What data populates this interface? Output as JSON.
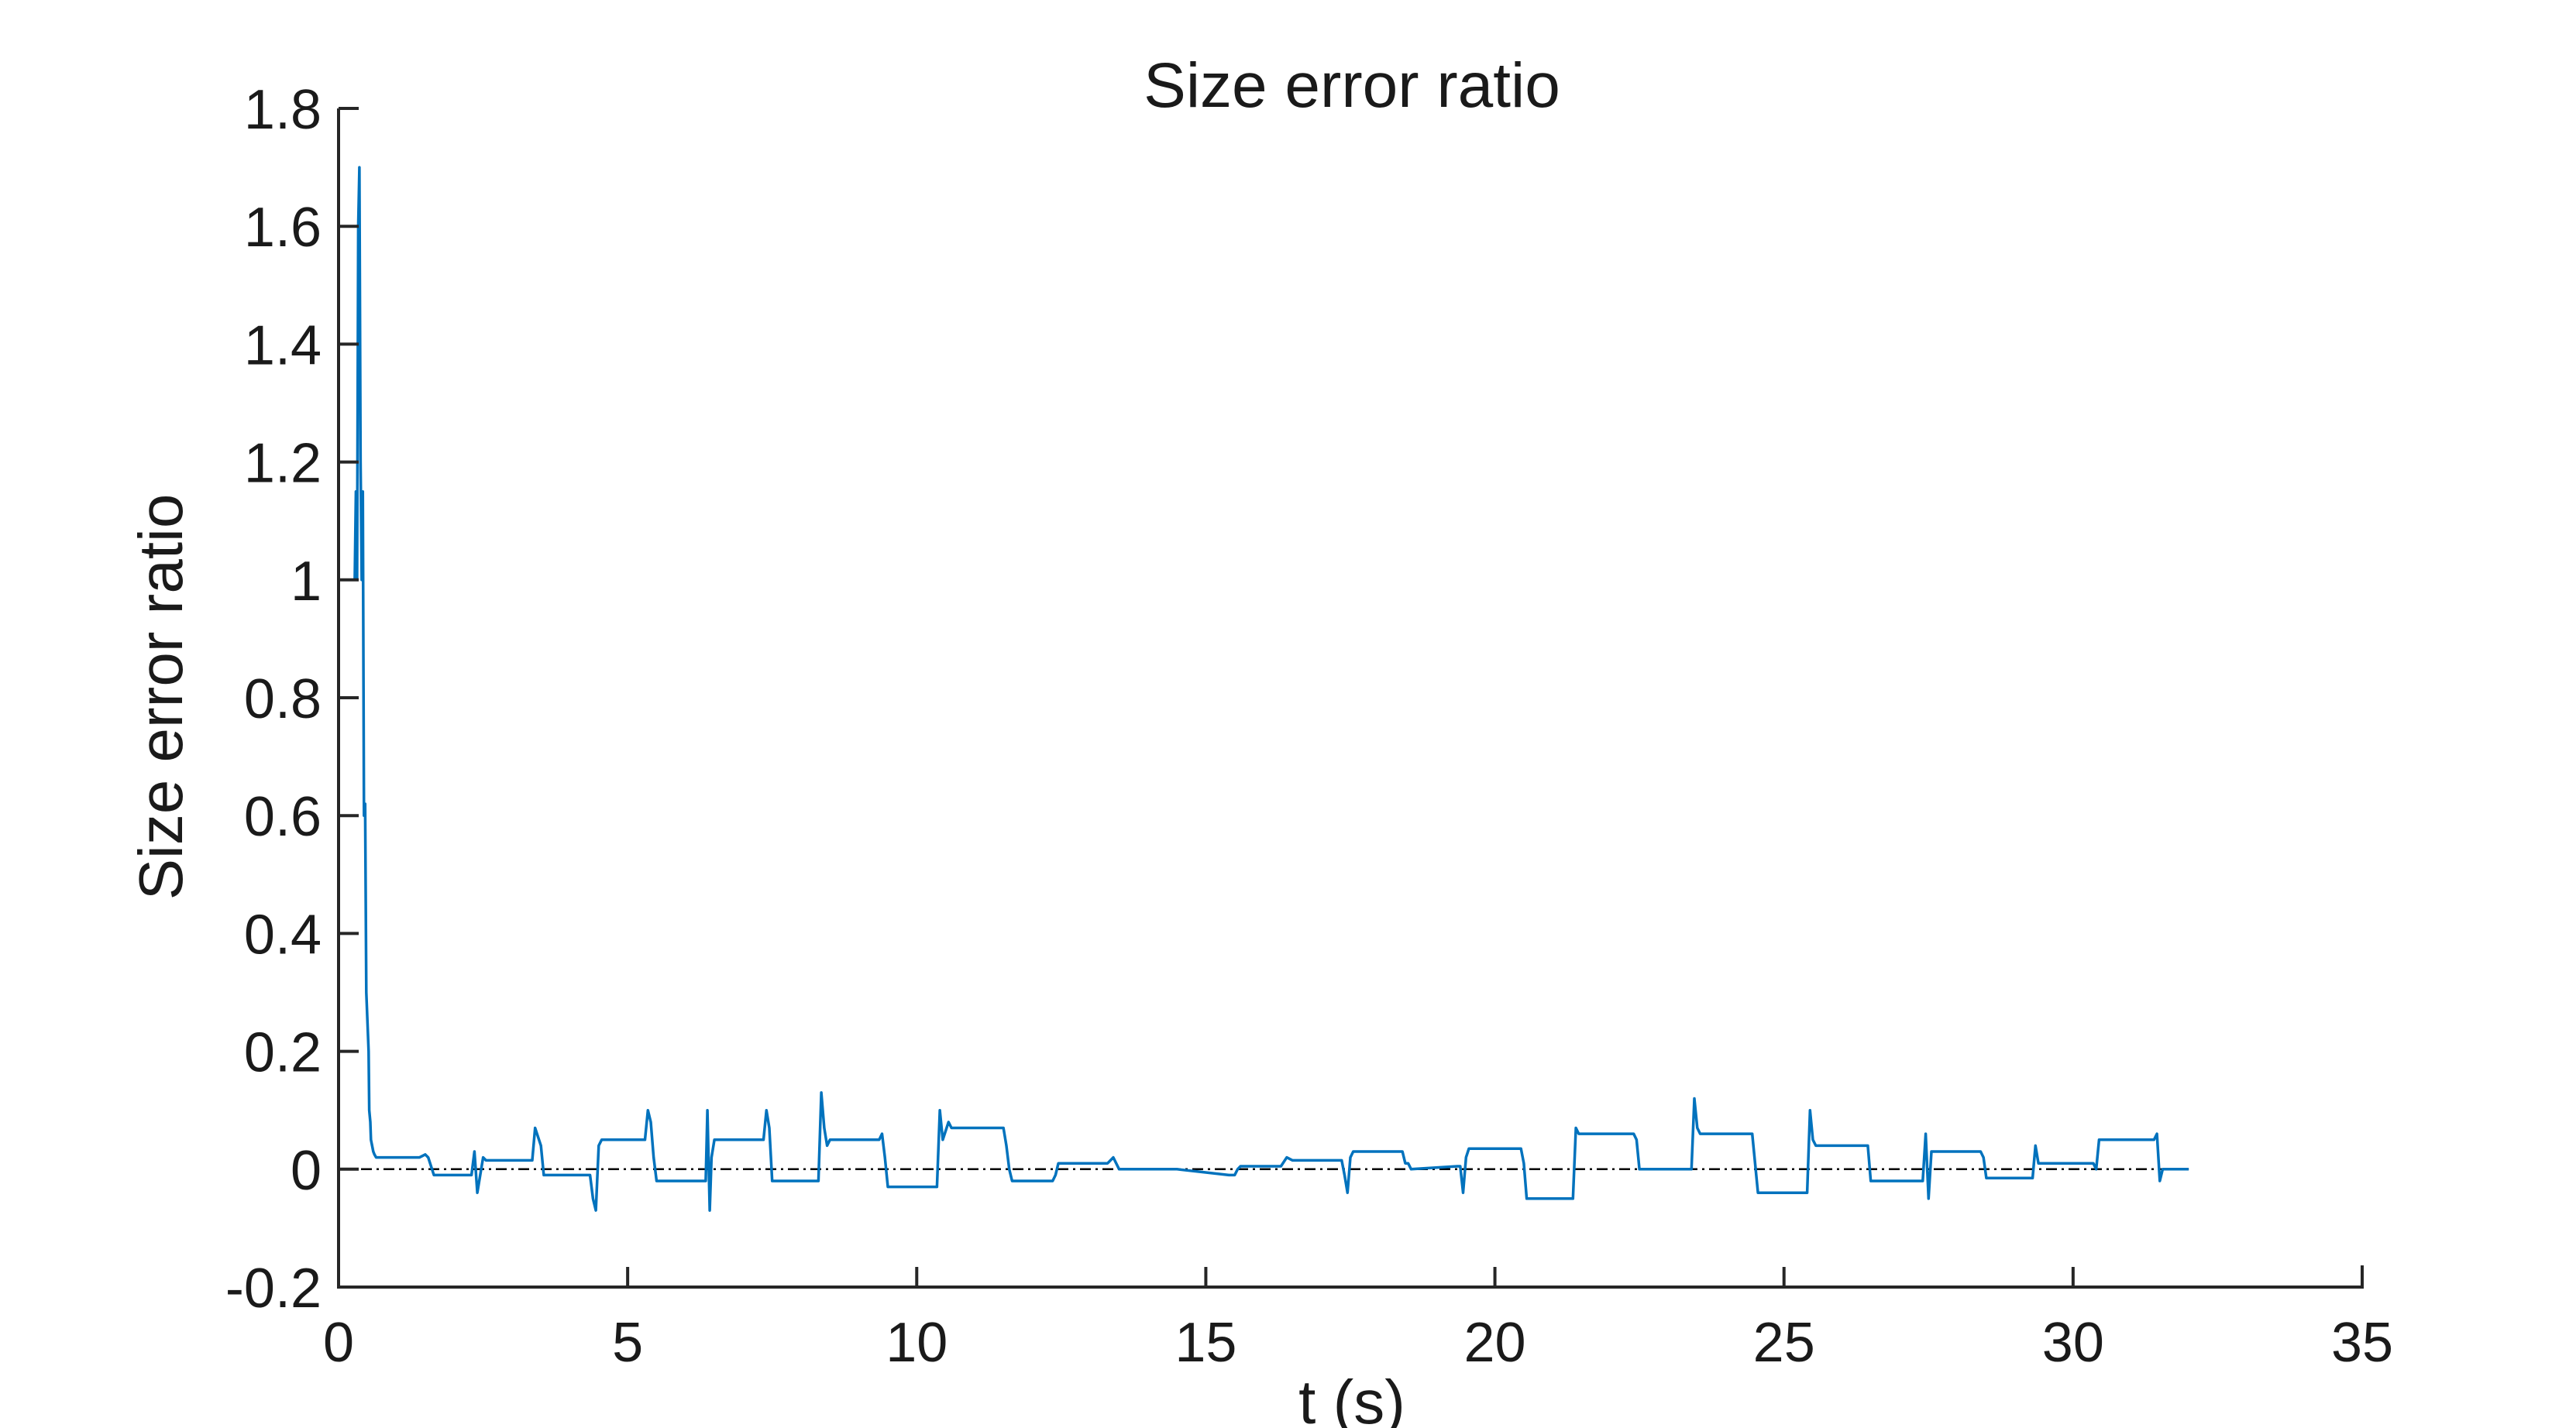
{
  "chart_data": {
    "type": "line",
    "title": "Size error ratio",
    "xlabel": "t (s)",
    "ylabel": "Size error ratio",
    "xlim": [
      0,
      35
    ],
    "ylim": [
      -0.2,
      1.8
    ],
    "xticks": [
      0,
      5,
      10,
      15,
      20,
      25,
      30,
      35
    ],
    "xtick_labels": [
      "0",
      "5",
      "10",
      "15",
      "20",
      "25",
      "30",
      "35"
    ],
    "yticks": [
      -0.2,
      0,
      0.2,
      0.4,
      0.6,
      0.8,
      1,
      1.2,
      1.4,
      1.6,
      1.8
    ],
    "ytick_labels": [
      "-0.2",
      "0",
      "0.2",
      "0.4",
      "0.6",
      "0.8",
      "1",
      "1.2",
      "1.4",
      "1.6",
      "1.8"
    ],
    "grid": false,
    "reference_line": {
      "y": 0,
      "x_range": [
        0,
        32
      ],
      "style": "dash-dot",
      "color": "#000000"
    },
    "series": [
      {
        "color": "#0072BD",
        "x": [
          0.0,
          0.28,
          0.3,
          0.32,
          0.34,
          0.36,
          0.38,
          0.4,
          0.42,
          0.44,
          0.46,
          0.48,
          0.5,
          0.52,
          0.53,
          0.55,
          0.56,
          0.58,
          0.6,
          0.62,
          0.65,
          0.7,
          0.75,
          0.8,
          1.0,
          1.4,
          1.5,
          1.55,
          1.65,
          2.3,
          2.35,
          2.4,
          2.5,
          2.55,
          2.6,
          3.35,
          3.4,
          3.5,
          3.55,
          3.6,
          4.35,
          4.4,
          4.45,
          4.5,
          4.55,
          5.3,
          5.35,
          5.4,
          5.45,
          5.5,
          5.55,
          6.35,
          6.38,
          6.42,
          6.45,
          6.5,
          6.55,
          7.35,
          7.4,
          7.45,
          7.5,
          7.55,
          8.3,
          8.35,
          8.4,
          8.45,
          8.5,
          8.55,
          9.35,
          9.4,
          9.45,
          9.5,
          9.55,
          10.35,
          10.4,
          10.45,
          10.55,
          10.6,
          10.7,
          11.5,
          11.55,
          11.6,
          11.65,
          12.35,
          12.4,
          12.45,
          13.3,
          13.4,
          13.5,
          13.6,
          14.3,
          14.4,
          14.5,
          15.4,
          15.5,
          15.55,
          15.6,
          16.3,
          16.4,
          16.5,
          16.55,
          17.35,
          17.4,
          17.45,
          17.5,
          17.55,
          18.35,
          18.4,
          18.45,
          18.5,
          18.55,
          19.35,
          19.4,
          19.45,
          19.5,
          19.55,
          20.4,
          20.45,
          20.5,
          20.55,
          21.3,
          21.35,
          21.4,
          21.45,
          21.5,
          22.35,
          22.4,
          22.45,
          22.5,
          22.55,
          23.35,
          23.4,
          23.45,
          23.5,
          23.55,
          24.4,
          24.45,
          24.5,
          24.55,
          25.35,
          25.4,
          25.45,
          25.5,
          25.55,
          26.35,
          26.4,
          26.45,
          26.5,
          26.55,
          27.35,
          27.4,
          27.45,
          27.5,
          27.55,
          28.35,
          28.4,
          28.45,
          28.5,
          28.55,
          29.3,
          29.35,
          29.4,
          29.45,
          29.5,
          30.35,
          30.4,
          30.45,
          30.5,
          30.55,
          31.4,
          31.45,
          31.5,
          31.55,
          31.6,
          32.0
        ],
        "y": [
          1.0,
          1.0,
          1.15,
          1.0,
          1.6,
          1.7,
          1.2,
          1.0,
          1.15,
          0.6,
          0.62,
          0.3,
          0.25,
          0.2,
          0.1,
          0.08,
          0.05,
          0.04,
          0.03,
          0.025,
          0.02,
          0.02,
          0.02,
          0.02,
          0.02,
          0.02,
          0.025,
          0.02,
          -0.01,
          -0.01,
          0.03,
          -0.04,
          0.02,
          0.015,
          0.015,
          0.015,
          0.07,
          0.04,
          -0.01,
          -0.01,
          -0.01,
          -0.05,
          -0.07,
          0.04,
          0.05,
          0.05,
          0.1,
          0.08,
          0.02,
          -0.02,
          -0.02,
          -0.02,
          0.1,
          -0.07,
          0.02,
          0.05,
          0.05,
          0.05,
          0.1,
          0.07,
          -0.02,
          -0.02,
          -0.02,
          0.13,
          0.07,
          0.04,
          0.05,
          0.05,
          0.05,
          0.06,
          0.02,
          -0.03,
          -0.03,
          -0.03,
          0.1,
          0.05,
          0.08,
          0.07,
          0.07,
          0.07,
          0.04,
          0.0,
          -0.02,
          -0.02,
          -0.01,
          0.01,
          0.01,
          0.02,
          0.0,
          0.0,
          0.0,
          0.0,
          0.0,
          -0.01,
          -0.01,
          0.0,
          0.005,
          0.005,
          0.02,
          0.015,
          0.015,
          0.015,
          -0.01,
          -0.04,
          0.02,
          0.03,
          0.03,
          0.03,
          0.01,
          0.01,
          0.0,
          0.005,
          0.005,
          -0.04,
          0.02,
          0.035,
          0.035,
          0.035,
          0.01,
          -0.05,
          -0.05,
          -0.05,
          0.07,
          0.06,
          0.06,
          0.06,
          0.06,
          0.05,
          0.0,
          0.0,
          0.0,
          0.0,
          0.12,
          0.07,
          0.06,
          0.06,
          0.06,
          0.01,
          -0.04,
          -0.04,
          -0.04,
          0.1,
          0.05,
          0.04,
          0.04,
          0.04,
          0.04,
          -0.02,
          -0.02,
          -0.02,
          -0.02,
          0.06,
          -0.05,
          0.03,
          0.03,
          0.03,
          0.02,
          -0.015,
          -0.015,
          -0.015,
          0.04,
          0.01,
          0.01,
          0.01,
          0.01,
          0.0,
          0.05,
          0.05,
          0.05,
          0.05,
          0.06,
          -0.02,
          0.0,
          0.0,
          0.0
        ]
      }
    ]
  }
}
